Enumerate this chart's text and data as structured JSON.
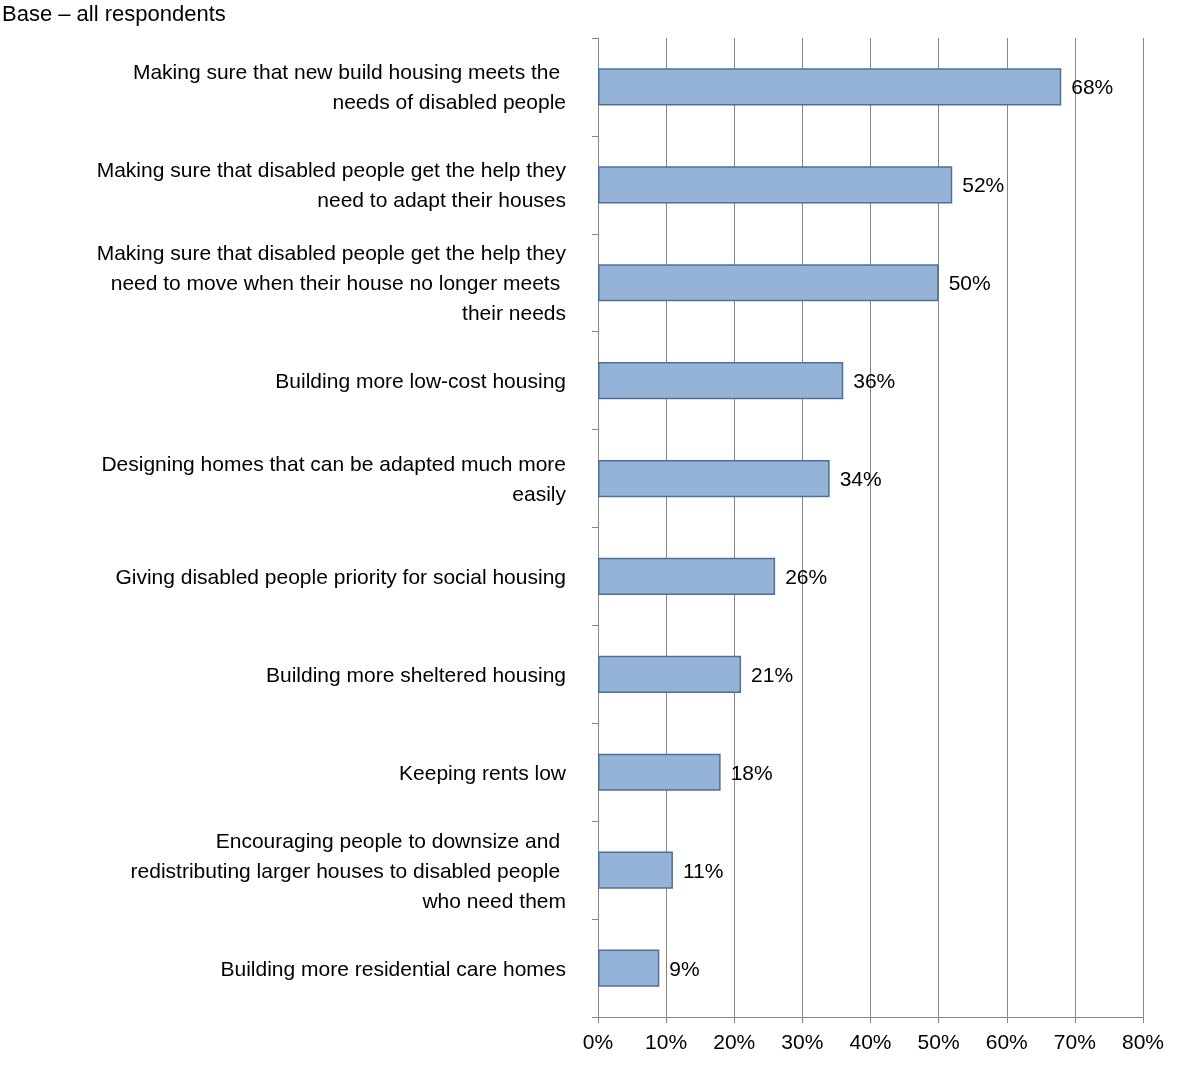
{
  "chart_data": {
    "type": "bar",
    "orientation": "horizontal",
    "annotations": [
      "Base – all respondents"
    ],
    "categories": [
      "Making sure that new build housing meets the needs of disabled people",
      "Making sure that disabled people get the help they need to adapt their houses",
      "Making sure that disabled people get the help they need to move when their house no longer meets their needs",
      "Building more low-cost housing",
      "Designing homes that can be adapted much more easily",
      "Giving disabled people priority for social housing",
      "Building more sheltered housing",
      "Keeping rents low",
      "Encouraging people to downsize and redistributing larger houses to disabled people who need them",
      "Building more residential care homes"
    ],
    "values": [
      68,
      52,
      50,
      36,
      34,
      26,
      21,
      18,
      11,
      9
    ],
    "value_labels": [
      "68%",
      "52%",
      "50%",
      "36%",
      "34%",
      "26%",
      "21%",
      "18%",
      "11%",
      "9%"
    ],
    "color": "#95b3d7",
    "xlim": [
      0,
      80
    ],
    "xticks": [
      {
        "value": 0,
        "label": "0%"
      },
      {
        "value": 10,
        "label": "10%"
      },
      {
        "value": 20,
        "label": "20%"
      },
      {
        "value": 30,
        "label": "30%"
      },
      {
        "value": 40,
        "label": "40%"
      },
      {
        "value": 50,
        "label": "50%"
      },
      {
        "value": 60,
        "label": "60%"
      },
      {
        "value": 70,
        "label": "70%"
      },
      {
        "value": 80,
        "label": "80%"
      }
    ],
    "grid": "x"
  }
}
